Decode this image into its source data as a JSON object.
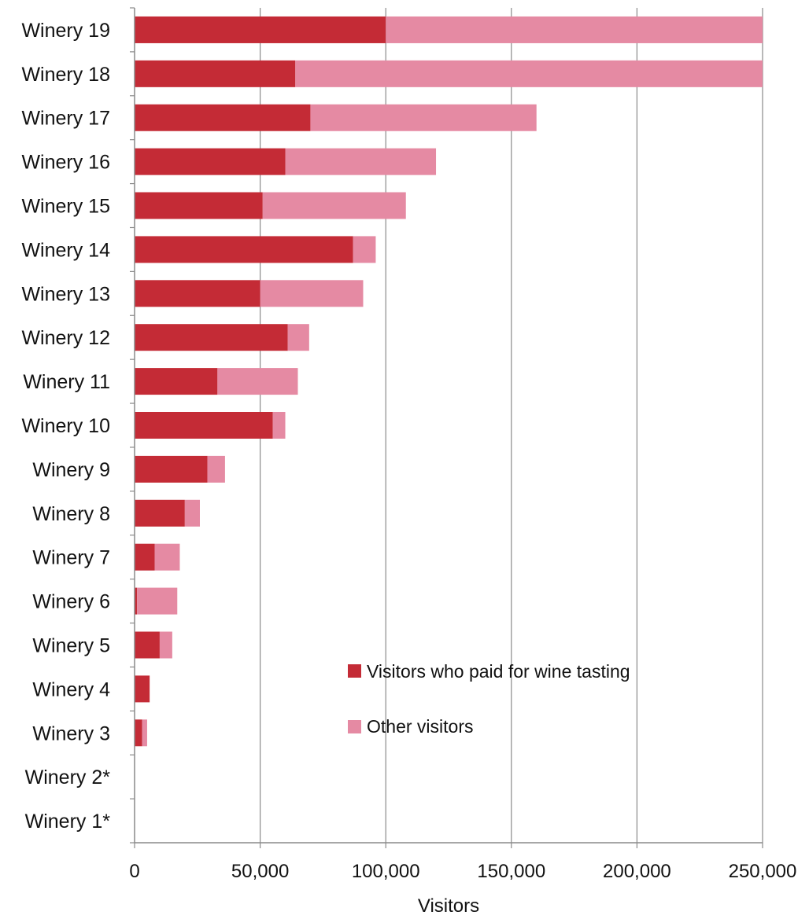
{
  "chart_data": {
    "type": "bar",
    "orientation": "horizontal",
    "stacked": true,
    "categories": [
      "Winery 19",
      "Winery 18",
      "Winery 17",
      "Winery 16",
      "Winery 15",
      "Winery 14",
      "Winery 13",
      "Winery 12",
      "Winery 11",
      "Winery 10",
      "Winery 9",
      "Winery 8",
      "Winery 7",
      "Winery 6",
      "Winery 5",
      "Winery 4",
      "Winery 3",
      "Winery 2*",
      "Winery 1*"
    ],
    "series": [
      {
        "name": "Visitors who paid for wine tasting",
        "color": "#c42b36",
        "values": [
          100000,
          64000,
          70000,
          60000,
          51000,
          87000,
          50000,
          61000,
          33000,
          55000,
          29000,
          20000,
          8000,
          1000,
          10000,
          6000,
          3000,
          0,
          0
        ]
      },
      {
        "name": "Other visitors",
        "color": "#e58aa3",
        "values": [
          150000,
          186000,
          90000,
          60000,
          57000,
          9000,
          41000,
          8500,
          32000,
          5000,
          7000,
          6000,
          10000,
          16000,
          5000,
          0,
          2000,
          0,
          0
        ]
      }
    ],
    "xlabel": "Visitors",
    "xlim": [
      0,
      250000
    ],
    "xticks": [
      0,
      50000,
      100000,
      150000,
      200000,
      250000
    ],
    "xtick_labels": [
      "0",
      "50,000",
      "100,000",
      "150,000",
      "200,000",
      "250,000"
    ],
    "grid": "vertical",
    "legend": "right"
  }
}
